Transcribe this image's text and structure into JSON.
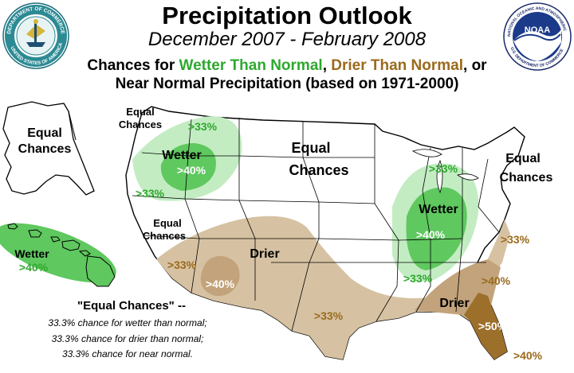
{
  "header": {
    "title": "Precipitation Outlook",
    "subtitle": "December 2007 - February 2008",
    "legend_prefix": "Chances for ",
    "legend_wetter": "Wetter Than Normal",
    "legend_sep1": ", ",
    "legend_drier": "Drier Than Normal",
    "legend_suffix": ", or",
    "legend_line2": "Near Normal Precipitation (based on 1971-2000)"
  },
  "logos": {
    "commerce_seal_text": "DEPARTMENT OF COMMERCE · UNITED STATES OF AMERICA",
    "noaa_seal_text": "NATIONAL OCEANIC AND ATMOSPHERIC ADMINISTRATION · U.S. DEPARTMENT OF COMMERCE",
    "noaa_wordmark": "NOAA"
  },
  "colors": {
    "wet_light": "#c3ecc3",
    "wet_dark": "#5fc85f",
    "dry_light": "#d6c2a2",
    "dry_mid": "#c2a37b",
    "dry_dark": "#9c6f2a",
    "wet_text": "#2ea82e",
    "dry_text": "#9a6a1c"
  },
  "map_labels": {
    "equal_alaska_1": "Equal",
    "equal_alaska_2": "Chances",
    "equal_nw_1": "Equal",
    "equal_nw_2": "Chances",
    "nw_wet_33_top": ">33%",
    "nw_wetter": "Wetter",
    "nw_wet_40": ">40%",
    "nw_wet_33_bottom": ">33%",
    "equal_central_1": "Equal",
    "equal_central_2": "Chances",
    "equal_sw_1": "Equal",
    "equal_sw_2": "Chances",
    "sw_dry_33": ">33%",
    "sw_drier": "Drier",
    "sw_dry_40": ">40%",
    "tx_dry_33": ">33%",
    "hawaii_wetter": "Wetter",
    "hawaii_wet_40": ">40%",
    "glakes_wet_33_top": ">33%",
    "glakes_wetter": "Wetter",
    "glakes_wet_40": ">40%",
    "ohio_wet_33": ">33%",
    "equal_ne_1": "Equal",
    "equal_ne_2": "Chances",
    "se_dry_33_top": ">33%",
    "se_dry_40": ">40%",
    "se_drier": "Drier",
    "fl_dry_50": ">50%",
    "fl_dry_40": ">40%"
  },
  "notes": {
    "title": "\"Equal Chances\" --",
    "line1": "33.3% chance for wetter than normal;",
    "line2": "33.3% chance for drier than normal;",
    "line3": "33.3% chance for near normal."
  }
}
